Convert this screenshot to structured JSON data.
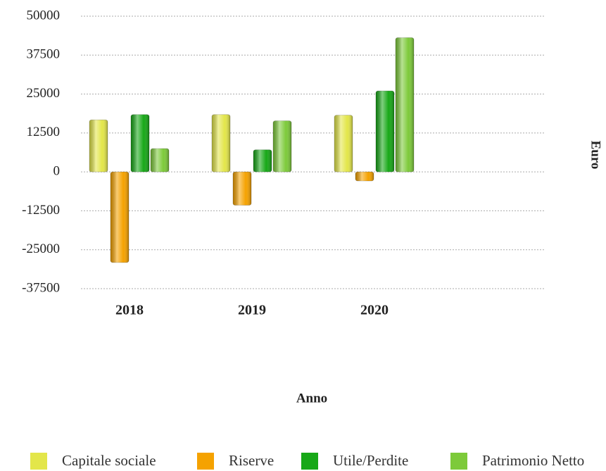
{
  "chart_data": {
    "type": "bar",
    "categories": [
      "2018",
      "2019",
      "2020"
    ],
    "series": [
      {
        "name": "Capitale sociale",
        "color": "#e3e64a",
        "values": [
          16700,
          18400,
          18200
        ]
      },
      {
        "name": "Riserve",
        "color": "#f5a200",
        "values": [
          -29100,
          -10700,
          -2900
        ]
      },
      {
        "name": "Utile/Perdite",
        "color": "#17a817",
        "values": [
          18400,
          7100,
          26000
        ]
      },
      {
        "name": "Patrimonio Netto",
        "color": "#7dca3a",
        "values": [
          7500,
          16400,
          43100
        ]
      }
    ],
    "ylim": [
      -37500,
      50000
    ],
    "yticks": [
      50000,
      37500,
      25000,
      12500,
      0,
      -12500,
      -25000,
      -37500
    ],
    "y_label": "Euro",
    "x_label": "Anno",
    "grid": true,
    "legend": "bottom"
  }
}
